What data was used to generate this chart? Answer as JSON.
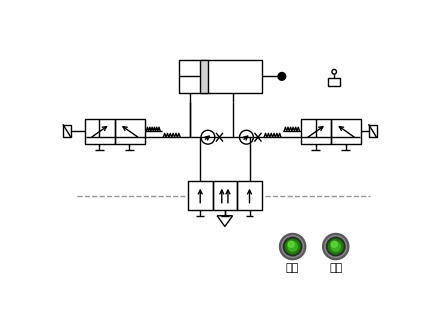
{
  "bg_color": "#ffffff",
  "line_color": "#000000",
  "dashed_color": "#999999",
  "button1_label": "暂停",
  "button2_label": "继续",
  "label_fontsize": 8,
  "lw": 1.0
}
